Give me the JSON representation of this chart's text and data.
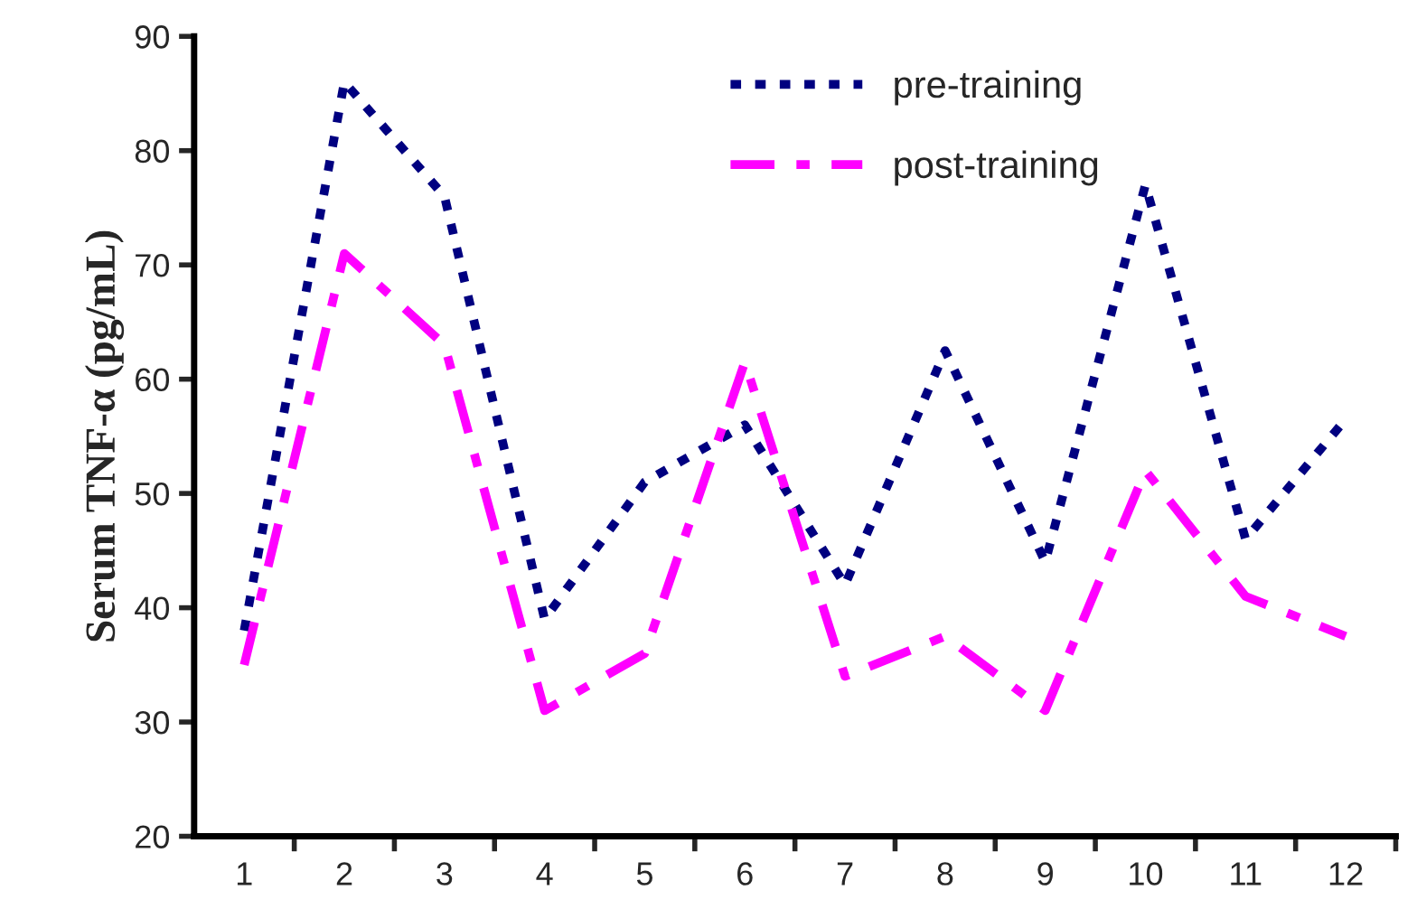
{
  "chart_data": {
    "type": "line",
    "ylabel": "Serum TNF-α (pg/mL)",
    "categories": [
      "1",
      "2",
      "3",
      "4",
      "5",
      "6",
      "7",
      "8",
      "9",
      "10",
      "11",
      "12"
    ],
    "series": [
      {
        "name": "pre-training",
        "color": "#000080",
        "line_style": "dotted",
        "values": [
          38,
          86,
          76,
          39,
          51,
          56,
          42,
          62.5,
          44,
          77,
          46,
          56.5
        ]
      },
      {
        "name": "post-training",
        "color": "#ff00ff",
        "line_style": "dashed",
        "values": [
          35,
          71,
          63,
          31,
          36,
          61.5,
          34,
          37.5,
          31,
          52,
          41,
          37.5
        ]
      }
    ],
    "ylim": [
      20,
      90
    ],
    "yticks": [
      20,
      30,
      40,
      50,
      60,
      70,
      80,
      90
    ],
    "grid": false,
    "legend": "top",
    "marker": "none"
  }
}
